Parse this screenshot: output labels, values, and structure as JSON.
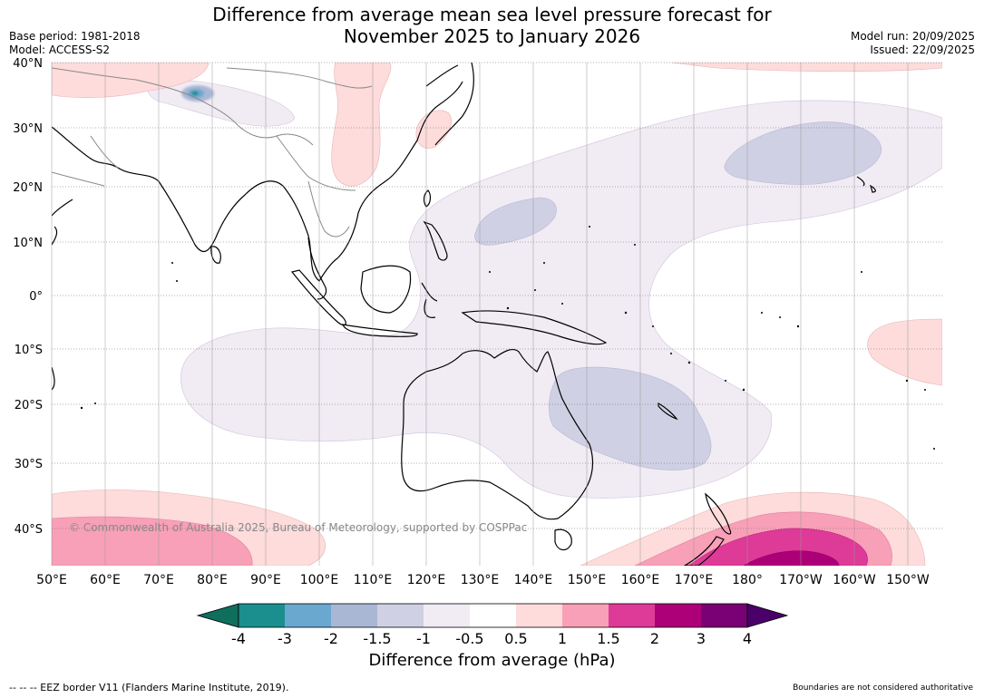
{
  "header": {
    "title_line1": "Difference from average mean sea level pressure forecast for",
    "title_line2": "November 2025 to January 2026",
    "base_period": "Base period: 1981-2018",
    "model": "Model: ACCESS-S2",
    "model_run": "Model run: 20/09/2025",
    "issued": "Issued: 22/09/2025"
  },
  "map": {
    "copyright": "© Commonwealth of Australia 2025, Bureau of Meteorology, supported by COSPPac",
    "lat_labels": [
      "40°N",
      "30°N",
      "20°N",
      "10°N",
      "0°",
      "10°S",
      "20°S",
      "30°S",
      "40°S"
    ],
    "lon_labels": [
      "50°E",
      "60°E",
      "70°E",
      "80°E",
      "90°E",
      "100°E",
      "110°E",
      "120°E",
      "130°E",
      "140°E",
      "150°E",
      "160°E",
      "170°E",
      "180°",
      "170°W",
      "160°W",
      "150°W"
    ]
  },
  "colorbar": {
    "title": "Difference from average (hPa)",
    "ticks": [
      "-4",
      "-3",
      "-2",
      "-1.5",
      "-1",
      "-0.5",
      "0.5",
      "1",
      "1.5",
      "2",
      "3",
      "4"
    ],
    "colors": [
      "#1b8e8e",
      "#6aa8cf",
      "#a9b7d5",
      "#cfd0e3",
      "#f1ebf4",
      "#ffffff",
      "#fddcdb",
      "#f8a0b8",
      "#de3a98",
      "#ad0078",
      "#7a0076"
    ],
    "under_color": "#0f6e5c",
    "over_color": "#4a0068"
  },
  "footer": {
    "eez_note": "-- -- -- EEZ border V11 (Flanders Marine Institute, 2019).",
    "boundaries_note": "Boundaries are not considered authoritative"
  }
}
